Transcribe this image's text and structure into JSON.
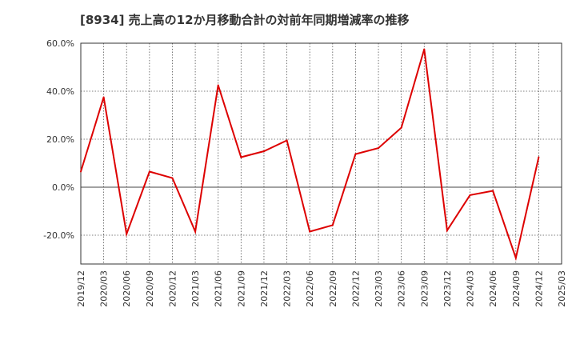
{
  "chart_data": {
    "type": "line",
    "title": "[8934]  売上高の12か月移動合計の対前年同期増減率の推移",
    "xlabel": "",
    "ylabel": "",
    "ylim": [
      -32,
      60
    ],
    "y_ticks": [
      60,
      40,
      20,
      0,
      -20
    ],
    "y_tick_labels": [
      "60.0%",
      "40.0%",
      "20.0%",
      "0.0%",
      "-20.0%"
    ],
    "categories": [
      "2019/12",
      "2020/03",
      "2020/06",
      "2020/09",
      "2020/12",
      "2021/03",
      "2021/06",
      "2021/09",
      "2021/12",
      "2022/03",
      "2022/06",
      "2022/09",
      "2022/12",
      "2023/03",
      "2023/06",
      "2023/09",
      "2023/12",
      "2024/03",
      "2024/06",
      "2024/09",
      "2024/12",
      "2025/03"
    ],
    "series": [
      {
        "name": "売上高の12か月移動合計の対前年同期増減率",
        "color": "#dd0000",
        "values": [
          6.5,
          37.5,
          -19.5,
          6.5,
          3.8,
          -18.5,
          42.5,
          12.5,
          15.0,
          19.5,
          -18.5,
          -15.8,
          13.8,
          16.3,
          24.8,
          57.5,
          -18.0,
          -3.3,
          -1.5,
          -29.5,
          12.5,
          null
        ]
      }
    ],
    "grid": true,
    "legend": "none"
  }
}
